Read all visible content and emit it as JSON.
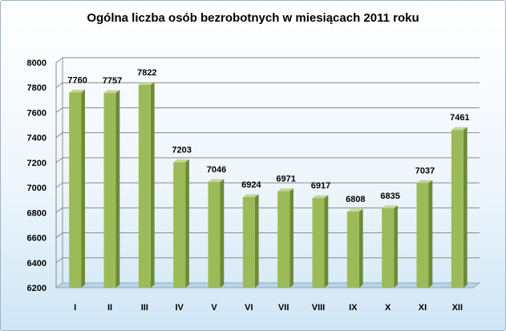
{
  "chart_data": {
    "type": "bar",
    "title": "Ogólna liczba osób bezrobotnych w miesiącach 2011 roku",
    "categories": [
      "I",
      "II",
      "III",
      "IV",
      "V",
      "VI",
      "VII",
      "VIII",
      "IX",
      "X",
      "XI",
      "XII"
    ],
    "values": [
      7760,
      7757,
      7822,
      7203,
      7046,
      6924,
      6971,
      6917,
      6808,
      6835,
      7037,
      7461
    ],
    "ylim": [
      6200,
      8000
    ],
    "yticks": [
      6200,
      6400,
      6600,
      6800,
      7000,
      7200,
      7400,
      7600,
      7800,
      8000
    ],
    "grid": true,
    "legend": "none",
    "colors": {
      "bar_front": "#9bbb59",
      "bar_side": "#6e8a36",
      "bar_top": "#c3d88f",
      "grid": "#8a8a8a",
      "floor": "#b8d4e8"
    }
  }
}
